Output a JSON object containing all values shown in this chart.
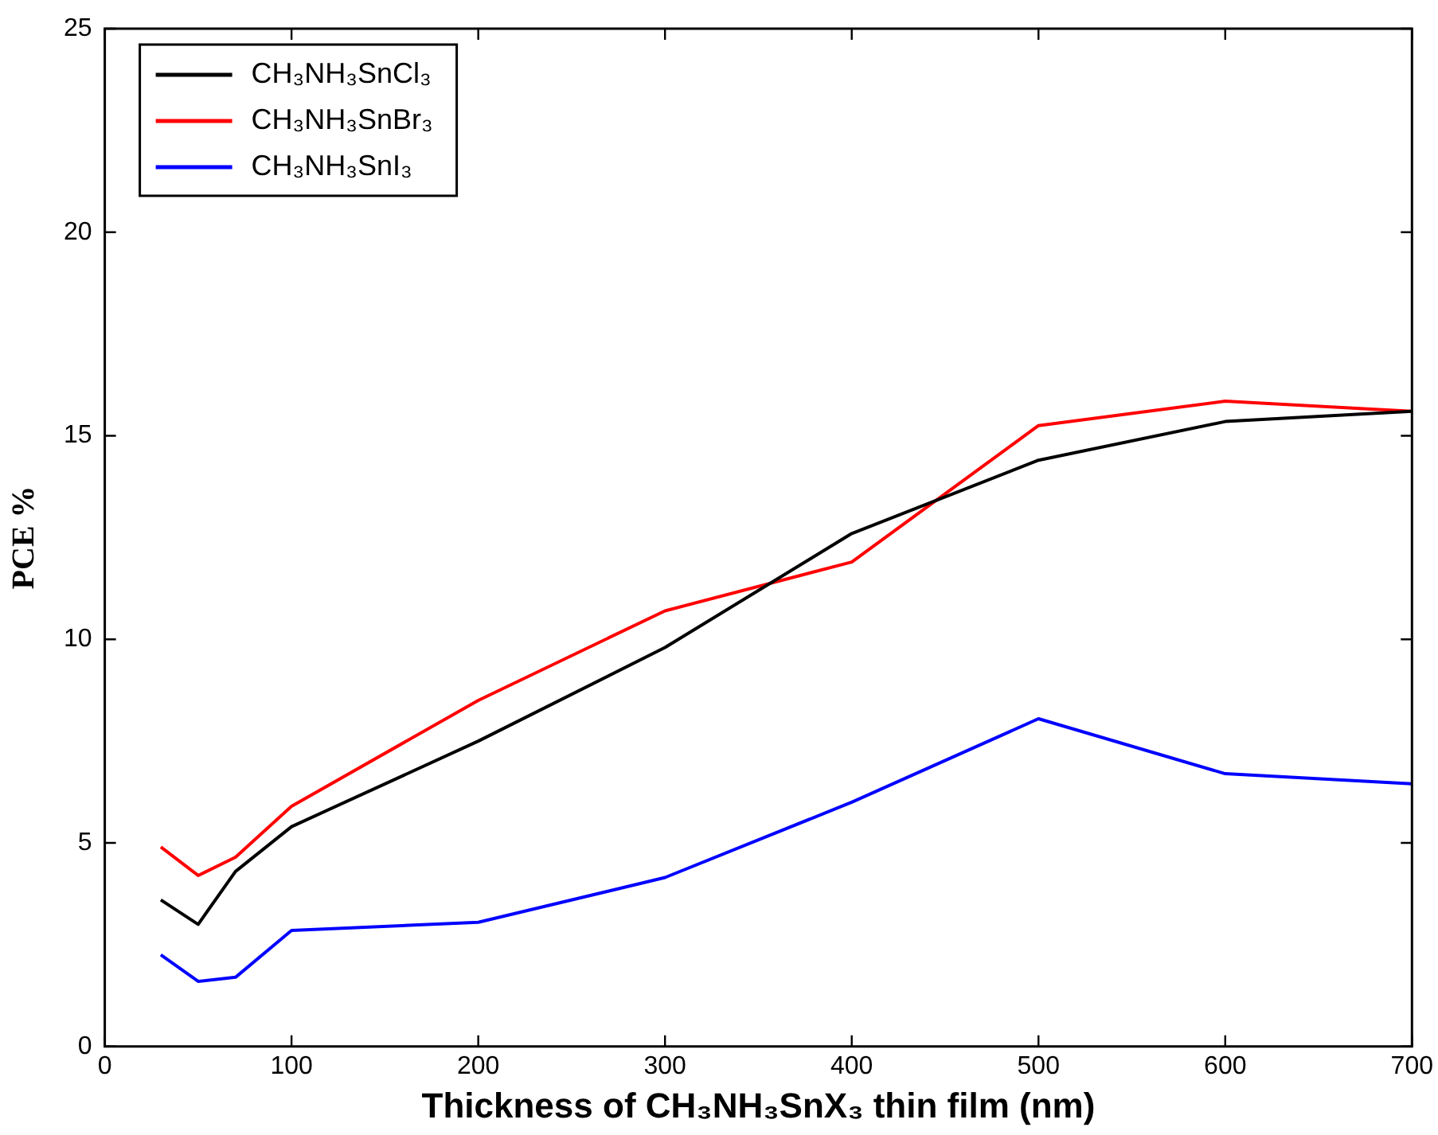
{
  "chart_data": {
    "type": "line",
    "xlabel": "Thickness of CH₃NH₃SnX₃ thin film (nm)",
    "ylabel": "PCE %",
    "x": [
      30,
      50,
      70,
      100,
      200,
      300,
      400,
      500,
      600,
      700
    ],
    "xlim": [
      0,
      700
    ],
    "xticks": [
      0,
      100,
      200,
      300,
      400,
      500,
      600,
      700
    ],
    "ylim": [
      0,
      25
    ],
    "yticks": [
      0,
      5,
      10,
      15,
      20,
      25
    ],
    "grid": false,
    "legend": "top left",
    "marker": "none",
    "line_style": "solid",
    "series": [
      {
        "name": "CH₃NH₃SnCl₃",
        "color": "#000000",
        "values": [
          3.6,
          3.0,
          4.3,
          5.4,
          7.5,
          9.8,
          12.6,
          14.4,
          15.35,
          15.6
        ]
      },
      {
        "name": "CH₃NH₃SnBr₃",
        "color": "#ff0000",
        "values": [
          4.9,
          4.2,
          4.65,
          5.9,
          8.5,
          10.7,
          11.9,
          15.25,
          15.85,
          15.6
        ]
      },
      {
        "name": "CH₃NH₃SnI₃",
        "color": "#0000ff",
        "values": [
          2.25,
          1.6,
          1.7,
          2.85,
          3.05,
          4.15,
          6.0,
          8.05,
          6.7,
          6.45
        ]
      }
    ]
  }
}
